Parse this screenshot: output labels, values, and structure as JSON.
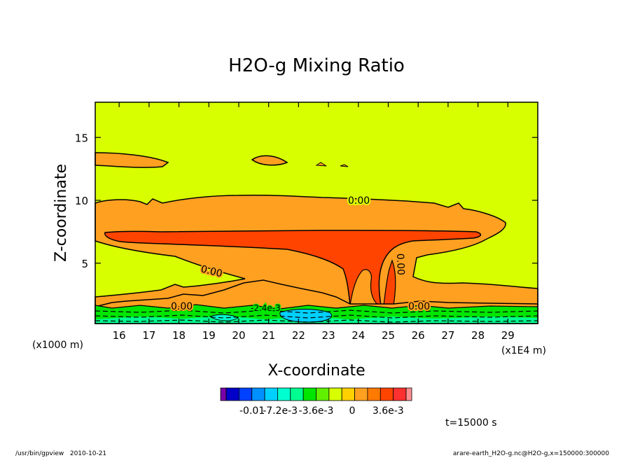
{
  "chart_data": {
    "type": "heatmap",
    "title": "H2O-g Mixing Ratio",
    "xlabel": "X-coordinate",
    "ylabel": "Z-coordinate",
    "x_unit_note": "(x1000 m)",
    "x_scale_note": "(x1E4 m)",
    "xlim": [
      15.2,
      30.0
    ],
    "ylim": [
      0.2,
      17.8
    ],
    "x_ticks": [
      16,
      17,
      18,
      19,
      20,
      21,
      22,
      23,
      24,
      25,
      26,
      27,
      28,
      29
    ],
    "y_ticks": [
      5,
      10,
      15
    ],
    "contour_labels": [
      "0.00",
      "0.00",
      "0.00",
      "0.00",
      "0.00",
      "-2.4e-3"
    ],
    "colorbar": {
      "tick_labels": [
        "-0.01",
        "-7.2e-3",
        "-3.6e-3",
        "0",
        "3.6e-3"
      ],
      "tick_values": [
        -0.01,
        -0.0072,
        -0.0036,
        0,
        0.0036
      ],
      "colors": [
        "#7a00a8",
        "#0000c8",
        "#0040ff",
        "#0090ff",
        "#00d0ff",
        "#00ffd0",
        "#00ff90",
        "#00e600",
        "#60f000",
        "#d8ff00",
        "#ffd000",
        "#ffa020",
        "#ff7a00",
        "#ff4400",
        "#ff3030",
        "#ff9090"
      ]
    },
    "time_label": "t=15000 s",
    "colors": {
      "background_level": "#d8ff00",
      "level_1": "#ffa020",
      "level_2": "#ff4400",
      "low_cool": "#00ffd0",
      "low_green": "#00e600"
    }
  },
  "footer": {
    "left": "/usr/bin/gpview   2010-10-21",
    "right": "arare-earth_H2O-g.nc@H2O-g,x=150000:300000"
  }
}
